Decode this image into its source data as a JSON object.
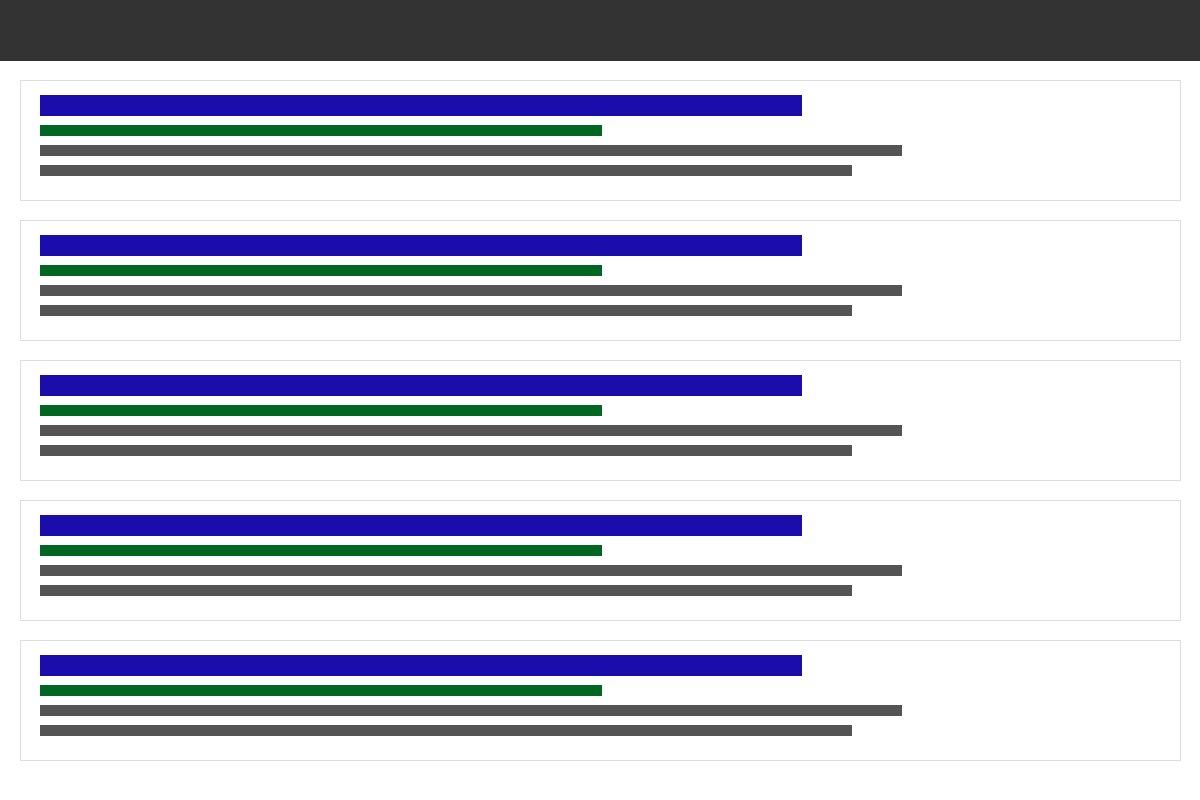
{
  "colors": {
    "header_background": "#333333",
    "card_border": "#dddddd",
    "title_placeholder": "#1a0dab",
    "url_placeholder": "#006621",
    "snippet_placeholder": "#545454"
  },
  "results": [
    {
      "title": "",
      "url": "",
      "snippet": [
        "",
        ""
      ]
    },
    {
      "title": "",
      "url": "",
      "snippet": [
        "",
        ""
      ]
    },
    {
      "title": "",
      "url": "",
      "snippet": [
        "",
        ""
      ]
    },
    {
      "title": "",
      "url": "",
      "snippet": [
        "",
        ""
      ]
    },
    {
      "title": "",
      "url": "",
      "snippet": [
        "",
        ""
      ]
    }
  ]
}
